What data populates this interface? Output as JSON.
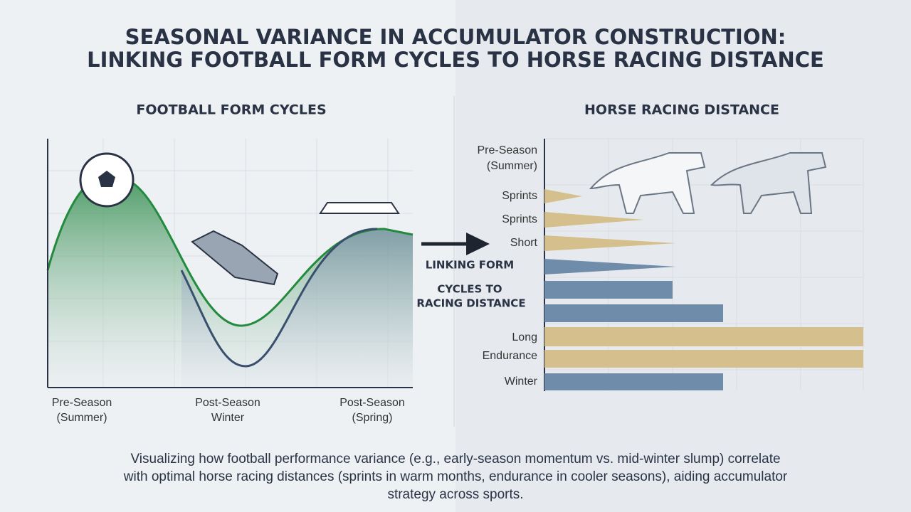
{
  "title_lines": [
    "SEASONAL VARIANCE IN ACCUMULATOR CONSTRUCTION:",
    "LINKING FOOTBALL FORM CYCLES TO HORSE RACING DISTANCE"
  ],
  "football": {
    "title": "FOOTBALL FORM CYCLES",
    "x_labels": [
      [
        "Pre-Season",
        "(Summer)"
      ],
      [
        "Post-Season",
        "Winter"
      ],
      [
        "Post-Season",
        "(Spring)"
      ]
    ]
  },
  "horse": {
    "title": "HORSE RACING DISTANCE",
    "header_lines": [
      "Pre-Season",
      "(Summer)"
    ],
    "row_labels": [
      "Sprints",
      "Sprints",
      "Short",
      "Long",
      "Endurance",
      "Winter"
    ]
  },
  "link_text": [
    "LINKING FORM",
    "CYCLES TO",
    "RACING DISTANCE"
  ],
  "caption_lines": [
    "Visualizing how football performance variance (e.g., early-season momentum vs. mid-winter slump) correlate",
    "with optimal horse racing distances (sprints in warm months, endurance in cooler seasons), aiding accumulator",
    "strategy across sports."
  ]
}
